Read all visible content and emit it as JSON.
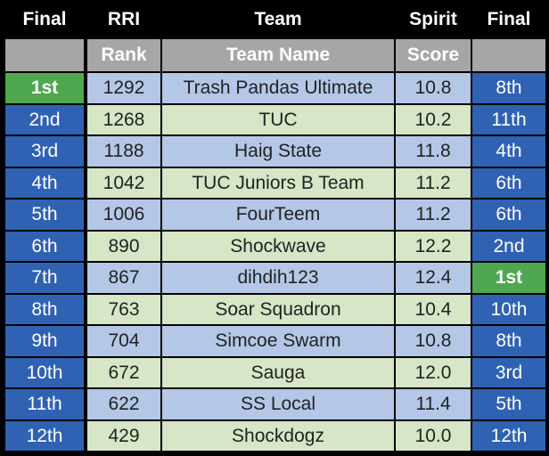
{
  "header": {
    "top": [
      "Final",
      "RRI",
      "Team",
      "Spirit",
      "Final"
    ],
    "sub": [
      "Rank",
      "Team Name",
      "Score"
    ]
  },
  "table": {
    "rows": [
      [
        "1st",
        "1292",
        "Trash Pandas Ultimate",
        "10.8",
        "8th"
      ],
      [
        "2nd",
        "1268",
        "TUC",
        "10.2",
        "11th"
      ],
      [
        "3rd",
        "1188",
        "Haig State",
        "11.8",
        "4th"
      ],
      [
        "4th",
        "1042",
        "TUC Juniors B Team",
        "11.2",
        "6th"
      ],
      [
        "5th",
        "1006",
        "FourTeem",
        "11.2",
        "6th"
      ],
      [
        "6th",
        "890",
        "Shockwave",
        "12.2",
        "2nd"
      ],
      [
        "7th",
        "867",
        "dihdih123",
        "12.4",
        "1st"
      ],
      [
        "8th",
        "763",
        "Soar Squadron",
        "10.4",
        "10th"
      ],
      [
        "9th",
        "704",
        "Simcoe Swarm",
        "10.8",
        "8th"
      ],
      [
        "10th",
        "672",
        "Sauga",
        "12.0",
        "3rd"
      ],
      [
        "11th",
        "622",
        "SS Local",
        "11.4",
        "5th"
      ],
      [
        "12th",
        "429",
        "Shockdogz",
        "10.0",
        "12th"
      ]
    ]
  }
}
